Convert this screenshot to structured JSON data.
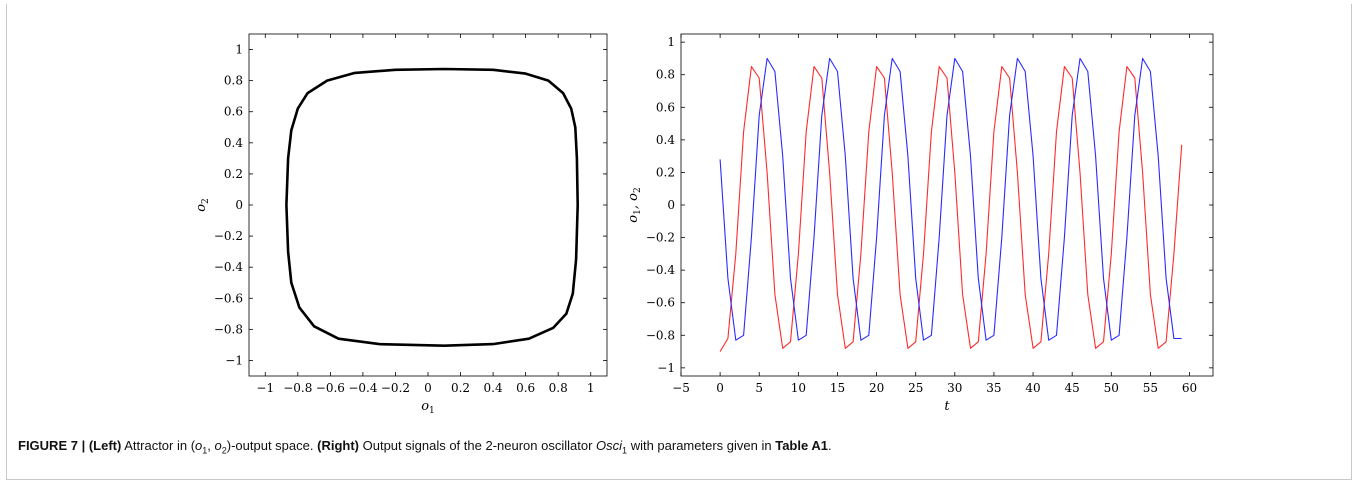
{
  "caption": {
    "figure_label": "FIGURE 7 |",
    "left_tag": "(Left)",
    "left_text_pre": "Attractor in (",
    "left_text_post": ")-output space.",
    "right_tag": "(Right)",
    "right_text_pre": "Output signals of the 2-neuron oscillator",
    "osc_name": "Osci",
    "osc_sub": "1",
    "right_text_mid": "with parameters given in",
    "table_ref": "Table A1",
    "end": "."
  },
  "chart_data": [
    {
      "type": "line",
      "xlabel": "o1",
      "ylabel": "o2",
      "xlim": [
        -1.1,
        1.1
      ],
      "ylim": [
        -1.1,
        1.1
      ],
      "xticks": [
        -1,
        -0.8,
        -0.6,
        -0.4,
        -0.2,
        0,
        0.2,
        0.4,
        0.6,
        0.8,
        1
      ],
      "yticks": [
        -1,
        -0.8,
        -0.6,
        -0.4,
        -0.2,
        0,
        0.2,
        0.4,
        0.6,
        0.8,
        1
      ],
      "xtick_labels": [
        "−1",
        "−0.8",
        "−0.6",
        "−0.4",
        "−0.2",
        "0",
        "0.2",
        "0.4",
        "0.6",
        "0.8",
        "1"
      ],
      "ytick_labels": [
        "−1",
        "−0.8",
        "−0.6",
        "−0.4",
        "−0.2",
        "0",
        "0.2",
        "0.4",
        "0.6",
        "0.8",
        "1"
      ],
      "grid": false,
      "series": [
        {
          "color": "#000000",
          "closed": true,
          "points": [
            [
              0.92,
              0.0
            ],
            [
              0.915,
              0.3
            ],
            [
              0.905,
              0.5
            ],
            [
              0.88,
              0.62
            ],
            [
              0.83,
              0.72
            ],
            [
              0.74,
              0.8
            ],
            [
              0.6,
              0.845
            ],
            [
              0.4,
              0.87
            ],
            [
              0.1,
              0.875
            ],
            [
              -0.2,
              0.87
            ],
            [
              -0.45,
              0.85
            ],
            [
              -0.62,
              0.8
            ],
            [
              -0.74,
              0.72
            ],
            [
              -0.8,
              0.62
            ],
            [
              -0.84,
              0.48
            ],
            [
              -0.86,
              0.3
            ],
            [
              -0.87,
              0.0
            ],
            [
              -0.86,
              -0.3
            ],
            [
              -0.84,
              -0.5
            ],
            [
              -0.79,
              -0.66
            ],
            [
              -0.7,
              -0.78
            ],
            [
              -0.55,
              -0.86
            ],
            [
              -0.3,
              -0.895
            ],
            [
              0.1,
              -0.905
            ],
            [
              0.4,
              -0.895
            ],
            [
              0.62,
              -0.86
            ],
            [
              0.77,
              -0.79
            ],
            [
              0.85,
              -0.7
            ],
            [
              0.89,
              -0.57
            ],
            [
              0.91,
              -0.35
            ]
          ]
        }
      ]
    },
    {
      "type": "line",
      "xlabel": "t",
      "ylabel": "o1, o2",
      "xlim": [
        -5,
        63
      ],
      "ylim": [
        -1.05,
        1.05
      ],
      "xticks": [
        -5,
        0,
        5,
        10,
        15,
        20,
        25,
        30,
        35,
        40,
        45,
        50,
        55,
        60
      ],
      "yticks": [
        -1,
        -0.8,
        -0.6,
        -0.4,
        -0.2,
        0,
        0.2,
        0.4,
        0.6,
        0.8,
        1
      ],
      "xtick_labels": [
        "−5",
        "0",
        "5",
        "10",
        "15",
        "20",
        "25",
        "30",
        "35",
        "40",
        "45",
        "50",
        "55",
        "60"
      ],
      "ytick_labels": [
        "−1",
        "−0.8",
        "−0.6",
        "−0.4",
        "−0.2",
        "0",
        "0.2",
        "0.4",
        "0.6",
        "0.8",
        "1"
      ],
      "grid": false,
      "series": [
        {
          "color": "#ff2a2a",
          "x": [
            0,
            1,
            2,
            3,
            4,
            5,
            6,
            7,
            8,
            9,
            10,
            11,
            12,
            13,
            14,
            15,
            16,
            17,
            18,
            19,
            20,
            21,
            22,
            23,
            24,
            25,
            26,
            27,
            28,
            29,
            30,
            31,
            32,
            33,
            34,
            35,
            36,
            37,
            38,
            39,
            40,
            41,
            42,
            43,
            44,
            45,
            46,
            47,
            48,
            49,
            50,
            51,
            52,
            53,
            54,
            55,
            56,
            57,
            58,
            59
          ],
          "y": [
            -0.9,
            -0.82,
            -0.3,
            0.45,
            0.85,
            0.78,
            0.2,
            -0.55,
            -0.88,
            -0.84,
            -0.3,
            0.45,
            0.85,
            0.78,
            0.2,
            -0.55,
            -0.88,
            -0.84,
            -0.3,
            0.45,
            0.85,
            0.78,
            0.2,
            -0.55,
            -0.88,
            -0.84,
            -0.3,
            0.45,
            0.85,
            0.78,
            0.2,
            -0.55,
            -0.88,
            -0.84,
            -0.3,
            0.45,
            0.85,
            0.78,
            0.2,
            -0.55,
            -0.88,
            -0.84,
            -0.3,
            0.45,
            0.85,
            0.78,
            0.2,
            -0.55,
            -0.88,
            -0.84,
            -0.3,
            0.45,
            0.85,
            0.78,
            0.2,
            -0.55,
            -0.88,
            -0.84,
            -0.3,
            0.37
          ]
        },
        {
          "color": "#2a2aff",
          "x": [
            0,
            1,
            2,
            3,
            4,
            5,
            6,
            7,
            8,
            9,
            10,
            11,
            12,
            13,
            14,
            15,
            16,
            17,
            18,
            19,
            20,
            21,
            22,
            23,
            24,
            25,
            26,
            27,
            28,
            29,
            30,
            31,
            32,
            33,
            34,
            35,
            36,
            37,
            38,
            39,
            40,
            41,
            42,
            43,
            44,
            45,
            46,
            47,
            48,
            49,
            50,
            51,
            52,
            53,
            54,
            55,
            56,
            57,
            58,
            59
          ],
          "y": [
            0.28,
            -0.45,
            -0.83,
            -0.8,
            -0.2,
            0.55,
            0.9,
            0.82,
            0.3,
            -0.45,
            -0.83,
            -0.8,
            -0.2,
            0.55,
            0.9,
            0.82,
            0.3,
            -0.45,
            -0.83,
            -0.8,
            -0.2,
            0.55,
            0.9,
            0.82,
            0.3,
            -0.45,
            -0.83,
            -0.8,
            -0.2,
            0.55,
            0.9,
            0.82,
            0.3,
            -0.45,
            -0.83,
            -0.8,
            -0.2,
            0.55,
            0.9,
            0.82,
            0.3,
            -0.45,
            -0.83,
            -0.8,
            -0.2,
            0.55,
            0.9,
            0.82,
            0.3,
            -0.45,
            -0.83,
            -0.8,
            -0.2,
            0.55,
            0.9,
            0.82,
            0.3,
            -0.45,
            -0.82,
            -0.82
          ]
        }
      ]
    }
  ]
}
